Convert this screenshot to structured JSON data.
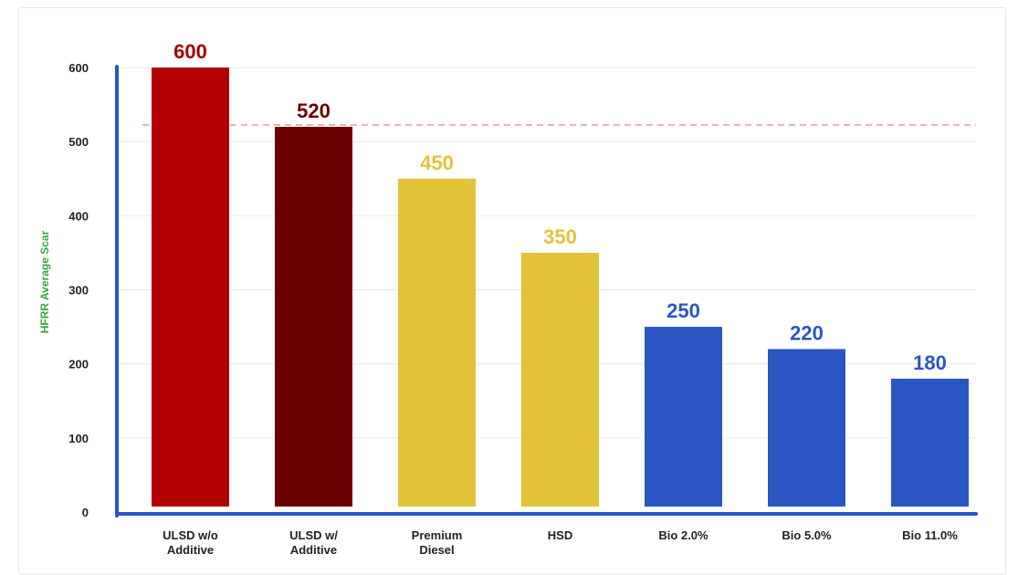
{
  "chart_data": {
    "type": "bar",
    "title": "",
    "xlabel": "",
    "ylabel": "HFRR Average Scar",
    "ylim": [
      0,
      600
    ],
    "yticks": [
      0,
      100,
      200,
      300,
      400,
      500,
      600
    ],
    "grid": true,
    "reference_line": 520,
    "categories": [
      [
        "ULSD w/o",
        "Additive"
      ],
      [
        "ULSD w/",
        "Additive"
      ],
      [
        "Premium",
        "Diesel"
      ],
      [
        "HSD"
      ],
      [
        "Bio 2.0%"
      ],
      [
        "Bio 5.0%"
      ],
      [
        "Bio 11.0%"
      ]
    ],
    "values": [
      600,
      520,
      450,
      350,
      250,
      220,
      180
    ],
    "data_labels": [
      "600",
      "520",
      "450",
      "350",
      "250",
      "220",
      "180"
    ],
    "bar_colors": [
      "#b30000",
      "#6b0000",
      "#e3c23a",
      "#e3c23a",
      "#2a56c4",
      "#2a56c4",
      "#2a56c4"
    ],
    "label_colors": [
      "#a30000",
      "#6b0000",
      "#e3c23a",
      "#e3c23a",
      "#2a56c4",
      "#2a56c4",
      "#2a56c4"
    ],
    "colors": {
      "axis": "#2a56c4",
      "grid": "#e9e9e9",
      "reference": "#d87a7a",
      "ylabel": "#3aa53a"
    }
  }
}
